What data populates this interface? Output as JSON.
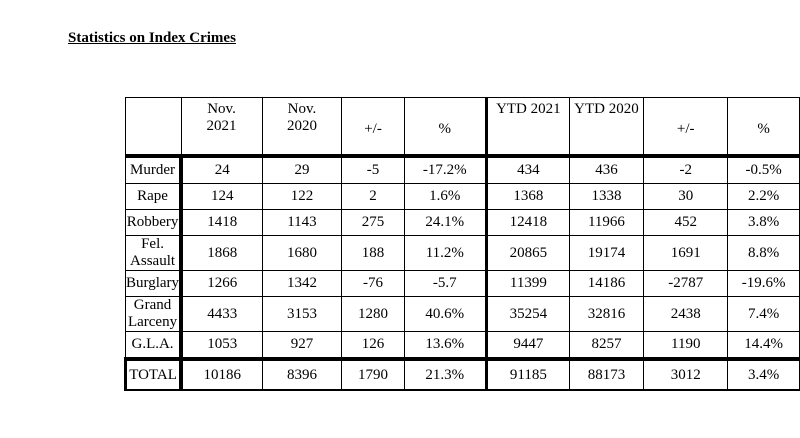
{
  "title": "Statistics on Index Crimes",
  "columns": [
    {
      "line1": "Nov.",
      "line2": "2021"
    },
    {
      "line1": "Nov.",
      "line2": "2020"
    },
    {
      "line1": "+/-",
      "line2": ""
    },
    {
      "line1": "%",
      "line2": ""
    },
    {
      "line1": "YTD 2021",
      "line2": ""
    },
    {
      "line1": "YTD 2020",
      "line2": ""
    },
    {
      "line1": "+/-",
      "line2": ""
    },
    {
      "line1": "%",
      "line2": ""
    }
  ],
  "rows": [
    {
      "label": "Murder",
      "values": [
        "24",
        "29",
        "-5",
        "-17.2%",
        "434",
        "436",
        "-2",
        "-0.5%"
      ]
    },
    {
      "label": "Rape",
      "values": [
        "124",
        "122",
        "2",
        "1.6%",
        "1368",
        "1338",
        "30",
        "2.2%"
      ]
    },
    {
      "label": "Robbery",
      "values": [
        "1418",
        "1143",
        "275",
        "24.1%",
        "12418",
        "11966",
        "452",
        "3.8%"
      ]
    },
    {
      "label": "Fel. Assault",
      "values": [
        "1868",
        "1680",
        "188",
        "11.2%",
        "20865",
        "19174",
        "1691",
        "8.8%"
      ]
    },
    {
      "label": "Burglary",
      "values": [
        "1266",
        "1342",
        "-76",
        "-5.7",
        "11399",
        "14186",
        "-2787",
        "-19.6%"
      ]
    },
    {
      "label": "Grand Larceny",
      "values": [
        "4433",
        "3153",
        "1280",
        "40.6%",
        "35254",
        "32816",
        "2438",
        "7.4%"
      ]
    },
    {
      "label": "G.L.A.",
      "values": [
        "1053",
        "927",
        "126",
        "13.6%",
        "9447",
        "8257",
        "1190",
        "14.4%"
      ]
    }
  ],
  "total": {
    "label": "TOTAL",
    "values": [
      "10186",
      "8396",
      "1790",
      "21.3%",
      "91185",
      "88173",
      "3012",
      "3.4%"
    ]
  }
}
